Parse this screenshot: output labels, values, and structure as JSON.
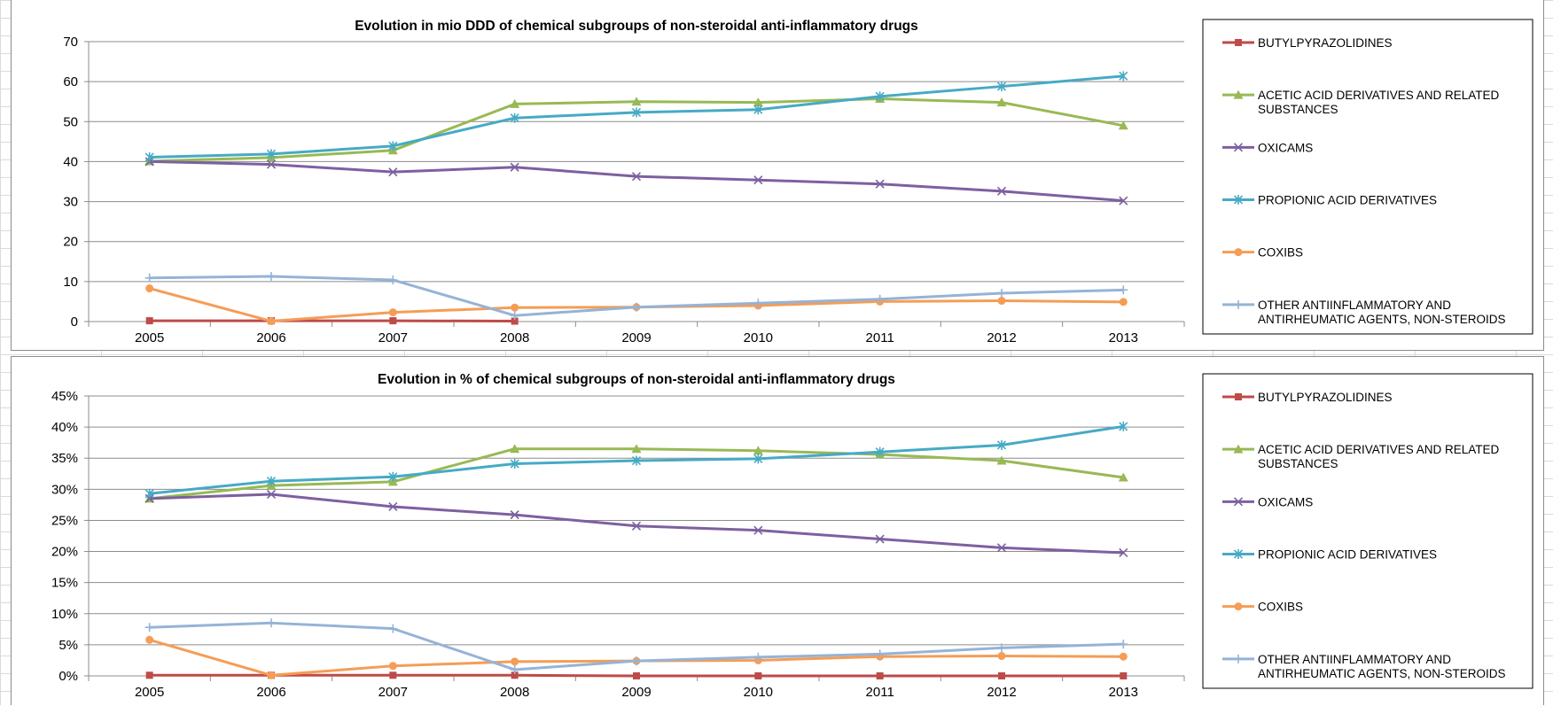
{
  "chart_data": [
    {
      "type": "line",
      "title": "Evolution in mio DDD of chemical subgroups of non-steroidal anti-inflammatory drugs",
      "categories": [
        "2005",
        "2006",
        "2007",
        "2008",
        "2009",
        "2010",
        "2011",
        "2012",
        "2013"
      ],
      "ylim": [
        0,
        70
      ],
      "yticks": [
        0,
        10,
        20,
        30,
        40,
        50,
        60,
        70
      ],
      "ytick_format": "number",
      "grid": true,
      "legend_position": "right",
      "series": [
        {
          "name": "BUTYLPYRAZOLIDINES",
          "marker": "square",
          "color": "#be4b48",
          "values": [
            0.2,
            0.2,
            0.2,
            0.1,
            null,
            null,
            null,
            null,
            null
          ]
        },
        {
          "name": "ACETIC ACID DERIVATIVES AND RELATED SUBSTANCES",
          "marker": "triangle",
          "color": "#98b954",
          "values": [
            40.1,
            41.0,
            42.8,
            54.4,
            55.0,
            54.8,
            55.7,
            54.8,
            49.0
          ]
        },
        {
          "name": "OXICAMS",
          "marker": "x",
          "color": "#7d60a0",
          "values": [
            40.0,
            39.3,
            37.4,
            38.6,
            36.3,
            35.4,
            34.4,
            32.6,
            30.2
          ]
        },
        {
          "name": "PROPIONIC ACID DERIVATIVES",
          "marker": "asterisk",
          "color": "#46aac5",
          "values": [
            41.1,
            41.9,
            43.9,
            50.9,
            52.3,
            53.0,
            56.3,
            58.8,
            61.4
          ]
        },
        {
          "name": "COXIBS",
          "marker": "circle",
          "color": "#f59d56",
          "values": [
            8.3,
            0.1,
            2.3,
            3.5,
            3.6,
            4.0,
            5.0,
            5.2,
            4.9
          ]
        },
        {
          "name": "OTHER ANTIINFLAMMATORY AND ANTIRHEUMATIC AGENTS, NON-STEROIDS",
          "marker": "plus",
          "color": "#95b3d7",
          "values": [
            10.9,
            11.3,
            10.4,
            1.5,
            3.6,
            4.6,
            5.6,
            7.1,
            7.9
          ]
        }
      ]
    },
    {
      "type": "line",
      "title": "Evolution in % of chemical subgroups of non-steroidal anti-inflammatory drugs",
      "categories": [
        "2005",
        "2006",
        "2007",
        "2008",
        "2009",
        "2010",
        "2011",
        "2012",
        "2013"
      ],
      "ylim": [
        0,
        45
      ],
      "yticks": [
        0,
        5,
        10,
        15,
        20,
        25,
        30,
        35,
        40,
        45
      ],
      "ytick_format": "percent",
      "grid": true,
      "legend_position": "right",
      "series": [
        {
          "name": "BUTYLPYRAZOLIDINES",
          "marker": "square",
          "color": "#be4b48",
          "values": [
            0.1,
            0.1,
            0.1,
            0.1,
            0.0,
            0.0,
            0.0,
            0.0,
            0.0
          ]
        },
        {
          "name": "ACETIC ACID DERIVATIVES AND RELATED SUBSTANCES",
          "marker": "triangle",
          "color": "#98b954",
          "values": [
            28.5,
            30.6,
            31.2,
            36.5,
            36.5,
            36.2,
            35.6,
            34.6,
            31.9
          ]
        },
        {
          "name": "OXICAMS",
          "marker": "x",
          "color": "#7d60a0",
          "values": [
            28.5,
            29.2,
            27.2,
            25.9,
            24.1,
            23.4,
            22.0,
            20.6,
            19.8
          ]
        },
        {
          "name": "PROPIONIC ACID DERIVATIVES",
          "marker": "asterisk",
          "color": "#46aac5",
          "values": [
            29.3,
            31.3,
            32.0,
            34.1,
            34.6,
            34.9,
            36.0,
            37.1,
            40.1
          ]
        },
        {
          "name": "COXIBS",
          "marker": "circle",
          "color": "#f59d56",
          "values": [
            5.8,
            0.1,
            1.6,
            2.3,
            2.4,
            2.5,
            3.1,
            3.2,
            3.1
          ]
        },
        {
          "name": "OTHER ANTIINFLAMMATORY AND ANTIRHEUMATIC AGENTS, NON-STEROIDS",
          "marker": "plus",
          "color": "#95b3d7",
          "values": [
            7.8,
            8.5,
            7.6,
            1.0,
            2.4,
            3.0,
            3.5,
            4.5,
            5.1
          ]
        }
      ]
    }
  ]
}
